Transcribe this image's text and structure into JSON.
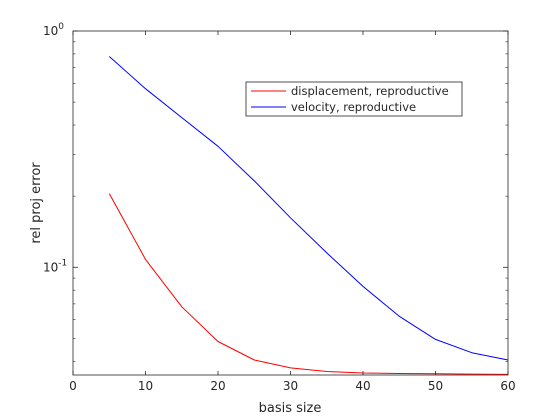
{
  "chart_data": {
    "type": "line",
    "title": "",
    "xlabel": "basis size",
    "ylabel": "rel proj error",
    "xlim": [
      0,
      60
    ],
    "ylim": [
      0.035,
      1
    ],
    "yscale": "log",
    "grid": false,
    "legend_position": "top-right",
    "x_ticks": [
      0,
      10,
      20,
      30,
      40,
      50,
      60
    ],
    "x_tick_labels": [
      "0",
      "10",
      "20",
      "30",
      "40",
      "50",
      "60"
    ],
    "y_ticks": [
      0.1,
      1
    ],
    "y_tick_labels": [
      {
        "base": "10",
        "exp": "-1"
      },
      {
        "base": "10",
        "exp": "0"
      }
    ],
    "series": [
      {
        "name": "displacement, reproductive",
        "color": "#ff0000",
        "x": [
          5,
          10,
          15,
          20,
          25,
          30,
          35,
          40,
          45,
          50,
          55,
          60
        ],
        "y": [
          0.205,
          0.108,
          0.068,
          0.0485,
          0.0405,
          0.0375,
          0.0362,
          0.0357,
          0.0355,
          0.0354,
          0.0353,
          0.0352
        ]
      },
      {
        "name": "velocity, reproductive",
        "color": "#0000ff",
        "x": [
          5,
          10,
          15,
          20,
          25,
          30,
          35,
          40,
          45,
          50,
          55,
          60
        ],
        "y": [
          0.78,
          0.57,
          0.43,
          0.325,
          0.232,
          0.162,
          0.115,
          0.083,
          0.062,
          0.0495,
          0.0435,
          0.0405
        ]
      }
    ]
  }
}
